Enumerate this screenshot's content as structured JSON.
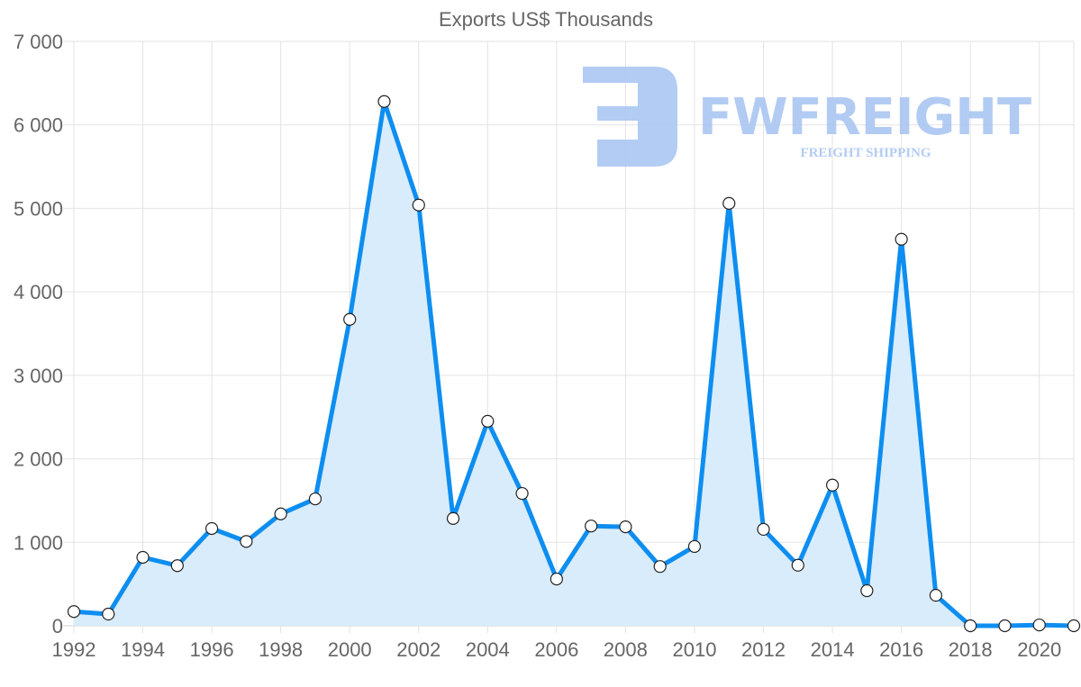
{
  "chart_data": {
    "type": "area",
    "title": "Exports US$ Thousands",
    "xlabel": "",
    "ylabel": "",
    "x": [
      1992,
      1993,
      1994,
      1995,
      1996,
      1997,
      1998,
      1999,
      2000,
      2001,
      2002,
      2003,
      2004,
      2005,
      2006,
      2007,
      2008,
      2009,
      2010,
      2011,
      2012,
      2013,
      2014,
      2015,
      2016,
      2017,
      2018,
      2019,
      2020,
      2021
    ],
    "series": [
      {
        "name": "Exports US$ Thousands",
        "values": [
          170,
          140,
          820,
          720,
          1165,
          1010,
          1340,
          1520,
          3670,
          6280,
          5040,
          1285,
          2450,
          1585,
          560,
          1195,
          1185,
          710,
          950,
          5060,
          1155,
          725,
          1685,
          420,
          4630,
          365,
          0,
          0,
          10,
          0
        ]
      }
    ],
    "xlim": [
      1992,
      2021
    ],
    "ylim": [
      0,
      7000
    ],
    "x_ticks": [
      "1992",
      "1994",
      "1996",
      "1998",
      "2000",
      "2002",
      "2004",
      "2006",
      "2008",
      "2010",
      "2012",
      "2014",
      "2016",
      "2018",
      "2020"
    ],
    "y_ticks": [
      "0",
      "1 000",
      "2 000",
      "3 000",
      "4 000",
      "5 000",
      "6 000",
      "7 000"
    ],
    "grid": true,
    "legend": "none",
    "colors": {
      "line": "#0d8ef0",
      "fill": "#d9ecfc",
      "grid": "#e3e3e3",
      "watermark": "#aac6f2"
    }
  },
  "watermark": {
    "brand": "FWFREIGHT",
    "tagline": "FREIGHT SHIPPING"
  }
}
